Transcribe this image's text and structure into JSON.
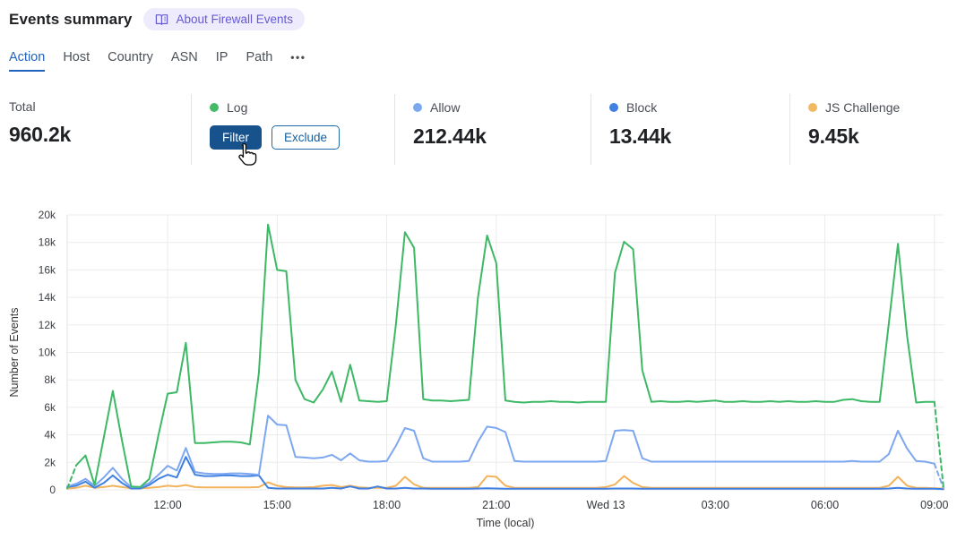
{
  "header": {
    "title": "Events summary",
    "about_badge_label": "About Firewall Events"
  },
  "tabs": {
    "items": [
      "Action",
      "Host",
      "Country",
      "ASN",
      "IP",
      "Path"
    ],
    "active": "Action",
    "more_label": "•••"
  },
  "stats": {
    "total": {
      "label": "Total",
      "value": "960.2k"
    },
    "log": {
      "label": "Log",
      "dot_color": "#44ba66",
      "filter_label": "Filter",
      "exclude_label": "Exclude"
    },
    "allow": {
      "label": "Allow",
      "dot_color": "#7da7f0",
      "value": "212.44k"
    },
    "block": {
      "label": "Block",
      "dot_color": "#3f80e2",
      "value": "13.44k"
    },
    "js_challenge": {
      "label": "JS Challenge",
      "dot_color": "#f2b862",
      "value": "9.45k"
    }
  },
  "colors": {
    "accent_blue": "#2263be",
    "badge_purple": "#655ad1",
    "gridline": "#ebebeb",
    "axis_text": "#3b3e43"
  },
  "chart_data": {
    "type": "line",
    "title": "",
    "xlabel": "Time (local)",
    "ylabel": "Number of Events",
    "ylim": [
      0,
      20000
    ],
    "grid": true,
    "legend_position": "none",
    "x_interval_minutes": 15,
    "x_range": [
      "Tue 09:15",
      "Wed 09:15"
    ],
    "y_ticks": [
      "0",
      "2k",
      "4k",
      "6k",
      "8k",
      "10k",
      "12k",
      "14k",
      "16k",
      "18k",
      "20k"
    ],
    "x_ticks": [
      "12:00",
      "15:00",
      "18:00",
      "21:00",
      "Wed 13",
      "03:00",
      "06:00",
      "09:00"
    ],
    "x_tick_indices": [
      11,
      23,
      35,
      47,
      59,
      71,
      83,
      95
    ],
    "values_unit": "thousands",
    "series": [
      {
        "name": "Log",
        "color": "#3db965",
        "dashed_start": 1,
        "dashed_end": 1,
        "values": [
          0.1,
          1.8,
          2.5,
          0.35,
          3.8,
          7.2,
          3.6,
          0.25,
          0.2,
          0.8,
          4.0,
          7.0,
          7.1,
          10.7,
          3.4,
          3.4,
          3.45,
          3.5,
          3.5,
          3.45,
          3.3,
          8.5,
          19.3,
          16.0,
          15.9,
          8.0,
          6.6,
          6.35,
          7.3,
          8.6,
          6.4,
          9.1,
          6.5,
          6.45,
          6.4,
          6.45,
          12.0,
          18.75,
          17.6,
          6.6,
          6.5,
          6.5,
          6.45,
          6.5,
          6.55,
          14.0,
          18.5,
          16.5,
          6.5,
          6.4,
          6.35,
          6.4,
          6.4,
          6.45,
          6.4,
          6.4,
          6.35,
          6.4,
          6.4,
          6.4,
          15.8,
          18.05,
          17.5,
          8.7,
          6.4,
          6.45,
          6.4,
          6.4,
          6.45,
          6.4,
          6.45,
          6.5,
          6.4,
          6.4,
          6.45,
          6.4,
          6.4,
          6.45,
          6.4,
          6.45,
          6.4,
          6.4,
          6.45,
          6.4,
          6.4,
          6.55,
          6.6,
          6.45,
          6.4,
          6.4,
          12.1,
          17.9,
          11.2,
          6.35,
          6.4,
          6.4,
          0.15
        ]
      },
      {
        "name": "Allow",
        "color": "#7da7f0",
        "dashed_start": 0,
        "dashed_end": 1,
        "values": [
          0.25,
          0.45,
          0.8,
          0.3,
          0.9,
          1.6,
          0.8,
          0.2,
          0.2,
          0.5,
          1.1,
          1.75,
          1.4,
          3.05,
          1.3,
          1.2,
          1.15,
          1.15,
          1.2,
          1.2,
          1.15,
          1.1,
          5.4,
          4.75,
          4.7,
          2.4,
          2.35,
          2.3,
          2.35,
          2.55,
          2.15,
          2.65,
          2.15,
          2.05,
          2.05,
          2.1,
          3.2,
          4.5,
          4.3,
          2.3,
          2.05,
          2.05,
          2.05,
          2.05,
          2.1,
          3.5,
          4.6,
          4.5,
          4.2,
          2.1,
          2.05,
          2.05,
          2.05,
          2.05,
          2.05,
          2.05,
          2.05,
          2.05,
          2.05,
          2.1,
          4.3,
          4.35,
          4.3,
          2.3,
          2.05,
          2.05,
          2.05,
          2.05,
          2.05,
          2.05,
          2.05,
          2.05,
          2.05,
          2.05,
          2.05,
          2.05,
          2.05,
          2.05,
          2.05,
          2.05,
          2.05,
          2.05,
          2.05,
          2.05,
          2.05,
          2.05,
          2.1,
          2.05,
          2.05,
          2.05,
          2.6,
          4.3,
          3.0,
          2.1,
          2.05,
          1.9,
          0.1
        ]
      },
      {
        "name": "Block",
        "color": "#3f80e2",
        "dashed_start": 0,
        "dashed_end": 0,
        "values": [
          0.2,
          0.3,
          0.6,
          0.15,
          0.5,
          1.05,
          0.5,
          0.1,
          0.1,
          0.35,
          0.8,
          1.1,
          0.9,
          2.4,
          1.1,
          1.0,
          1.0,
          1.05,
          1.05,
          1.0,
          1.0,
          1.05,
          0.15,
          0.1,
          0.1,
          0.1,
          0.1,
          0.1,
          0.1,
          0.15,
          0.1,
          0.25,
          0.1,
          0.1,
          0.25,
          0.1,
          0.1,
          0.15,
          0.1,
          0.1,
          0.08,
          0.08,
          0.08,
          0.08,
          0.08,
          0.1,
          0.12,
          0.1,
          0.08,
          0.08,
          0.08,
          0.08,
          0.08,
          0.08,
          0.08,
          0.08,
          0.08,
          0.08,
          0.08,
          0.08,
          0.1,
          0.1,
          0.1,
          0.08,
          0.08,
          0.08,
          0.08,
          0.08,
          0.08,
          0.08,
          0.08,
          0.08,
          0.08,
          0.08,
          0.08,
          0.08,
          0.08,
          0.08,
          0.08,
          0.08,
          0.08,
          0.08,
          0.08,
          0.08,
          0.08,
          0.08,
          0.08,
          0.08,
          0.08,
          0.08,
          0.1,
          0.15,
          0.1,
          0.08,
          0.08,
          0.08,
          0.05
        ]
      },
      {
        "name": "JS Challenge",
        "color": "#f2b35c",
        "dashed_start": 0,
        "dashed_end": 0,
        "values": [
          0.1,
          0.15,
          0.3,
          0.15,
          0.2,
          0.3,
          0.2,
          0.12,
          0.12,
          0.15,
          0.2,
          0.3,
          0.25,
          0.35,
          0.2,
          0.18,
          0.18,
          0.18,
          0.18,
          0.18,
          0.18,
          0.2,
          0.55,
          0.3,
          0.2,
          0.18,
          0.18,
          0.2,
          0.3,
          0.35,
          0.2,
          0.3,
          0.18,
          0.15,
          0.15,
          0.15,
          0.3,
          0.95,
          0.4,
          0.15,
          0.15,
          0.15,
          0.15,
          0.15,
          0.15,
          0.2,
          1.0,
          0.95,
          0.3,
          0.15,
          0.15,
          0.15,
          0.15,
          0.15,
          0.15,
          0.15,
          0.15,
          0.15,
          0.15,
          0.2,
          0.4,
          1.0,
          0.5,
          0.2,
          0.15,
          0.15,
          0.15,
          0.15,
          0.15,
          0.15,
          0.15,
          0.15,
          0.15,
          0.15,
          0.15,
          0.15,
          0.15,
          0.15,
          0.15,
          0.15,
          0.15,
          0.15,
          0.15,
          0.15,
          0.15,
          0.15,
          0.15,
          0.15,
          0.15,
          0.15,
          0.3,
          0.95,
          0.3,
          0.15,
          0.15,
          0.12,
          0.1
        ]
      }
    ]
  }
}
